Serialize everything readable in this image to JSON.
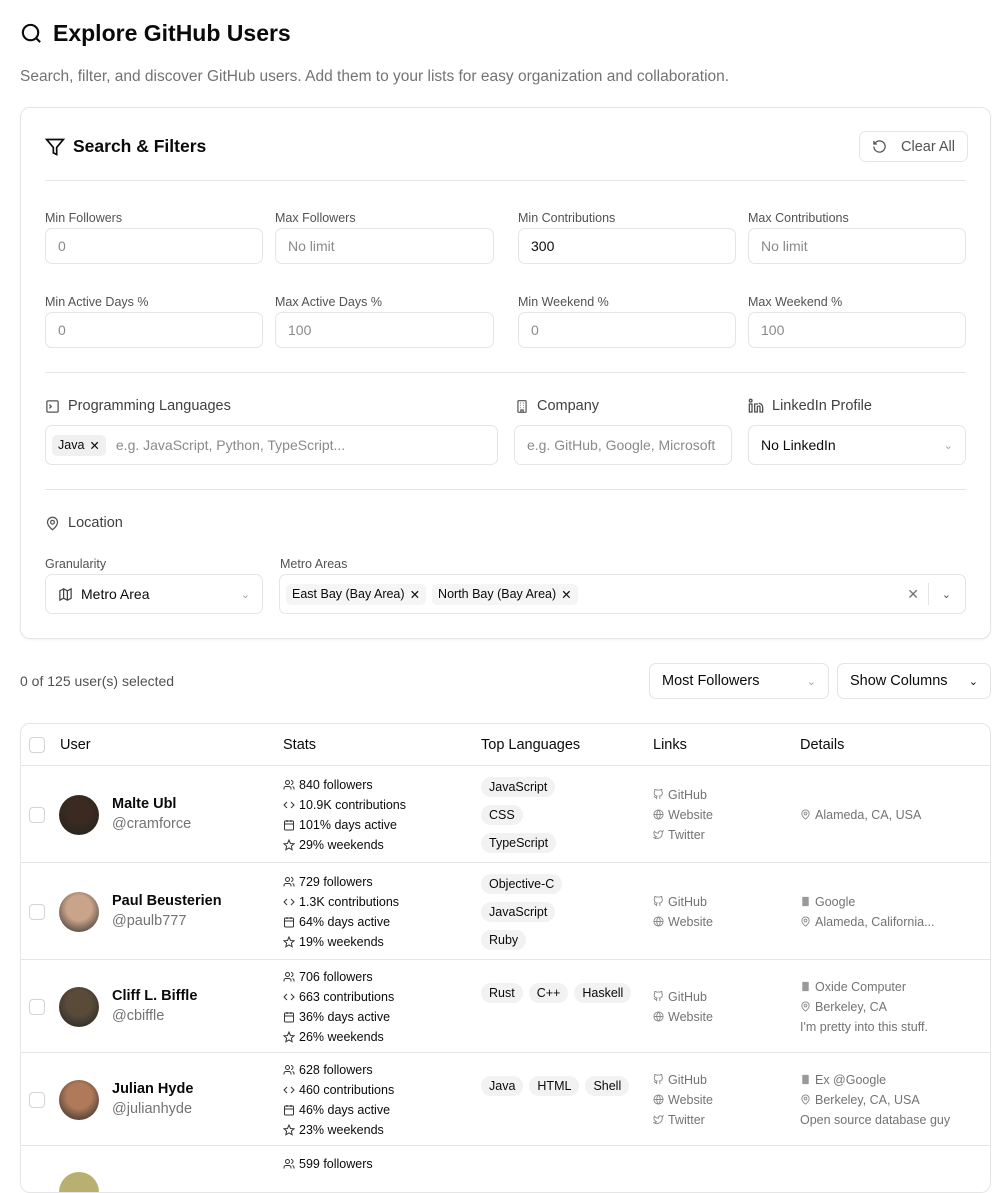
{
  "header": {
    "title": "Explore GitHub Users",
    "subtitle": "Search, filter, and discover GitHub users. Add them to your lists for easy organization and collaboration."
  },
  "filters": {
    "title": "Search & Filters",
    "clear_all": "Clear All",
    "fields": [
      {
        "label": "Min Followers",
        "value": "",
        "placeholder": "0"
      },
      {
        "label": "Max Followers",
        "value": "",
        "placeholder": "No limit"
      },
      {
        "label": "Min Contributions",
        "value": "300",
        "placeholder": ""
      },
      {
        "label": "Max Contributions",
        "value": "",
        "placeholder": "No limit"
      },
      {
        "label": "Min Active Days %",
        "value": "",
        "placeholder": "0"
      },
      {
        "label": "Max Active Days %",
        "value": "",
        "placeholder": "100"
      },
      {
        "label": "Min Weekend %",
        "value": "",
        "placeholder": "0"
      },
      {
        "label": "Max Weekend %",
        "value": "",
        "placeholder": "100"
      }
    ],
    "languages": {
      "label": "Programming Languages",
      "chips": [
        "Java"
      ],
      "placeholder": "e.g. JavaScript, Python, TypeScript..."
    },
    "company": {
      "label": "Company",
      "placeholder": "e.g. GitHub, Google, Microsoft"
    },
    "linkedin": {
      "label": "LinkedIn Profile",
      "value": "No LinkedIn"
    },
    "location": {
      "label": "Location",
      "granularity_label": "Granularity",
      "granularity_value": "Metro Area",
      "metro_label": "Metro Areas",
      "metro_chips": [
        "East Bay (Bay Area)",
        "North Bay (Bay Area)"
      ]
    }
  },
  "toolbar": {
    "selection": "0 of 125 user(s) selected",
    "sort": "Most Followers",
    "columns": "Show Columns"
  },
  "table": {
    "headers": [
      "User",
      "Stats",
      "Top Languages",
      "Links",
      "Details"
    ],
    "rows": [
      {
        "name": "Malte Ubl",
        "handle": "@cramforce",
        "followers": "840 followers",
        "contributions": "10.9K contributions",
        "active": "101% days active",
        "weekends": "29% weekends",
        "languages": [
          "JavaScript",
          "CSS",
          "TypeScript"
        ],
        "links": [
          "GitHub",
          "Website",
          "Twitter"
        ],
        "company": "",
        "location": "Alameda, CA, USA",
        "bio": ""
      },
      {
        "name": "Paul Beusterien",
        "handle": "@paulb777",
        "followers": "729 followers",
        "contributions": "1.3K contributions",
        "active": "64% days active",
        "weekends": "19% weekends",
        "languages": [
          "Objective-C",
          "JavaScript",
          "Ruby"
        ],
        "links": [
          "GitHub",
          "Website"
        ],
        "company": "Google",
        "location": "Alameda, California...",
        "bio": ""
      },
      {
        "name": "Cliff L. Biffle",
        "handle": "@cbiffle",
        "followers": "706 followers",
        "contributions": "663 contributions",
        "active": "36% days active",
        "weekends": "26% weekends",
        "languages": [
          "Rust",
          "C++",
          "Haskell"
        ],
        "links": [
          "GitHub",
          "Website"
        ],
        "company": "Oxide Computer",
        "location": "Berkeley, CA",
        "bio": "I'm pretty into this stuff."
      },
      {
        "name": "Julian Hyde",
        "handle": "@julianhyde",
        "followers": "628 followers",
        "contributions": "460 contributions",
        "active": "46% days active",
        "weekends": "23% weekends",
        "languages": [
          "Java",
          "HTML",
          "Shell"
        ],
        "links": [
          "GitHub",
          "Website",
          "Twitter"
        ],
        "company": "Ex @Google",
        "location": "Berkeley, CA, USA",
        "bio": "Open source database guy"
      },
      {
        "followers": "599 followers"
      }
    ]
  }
}
